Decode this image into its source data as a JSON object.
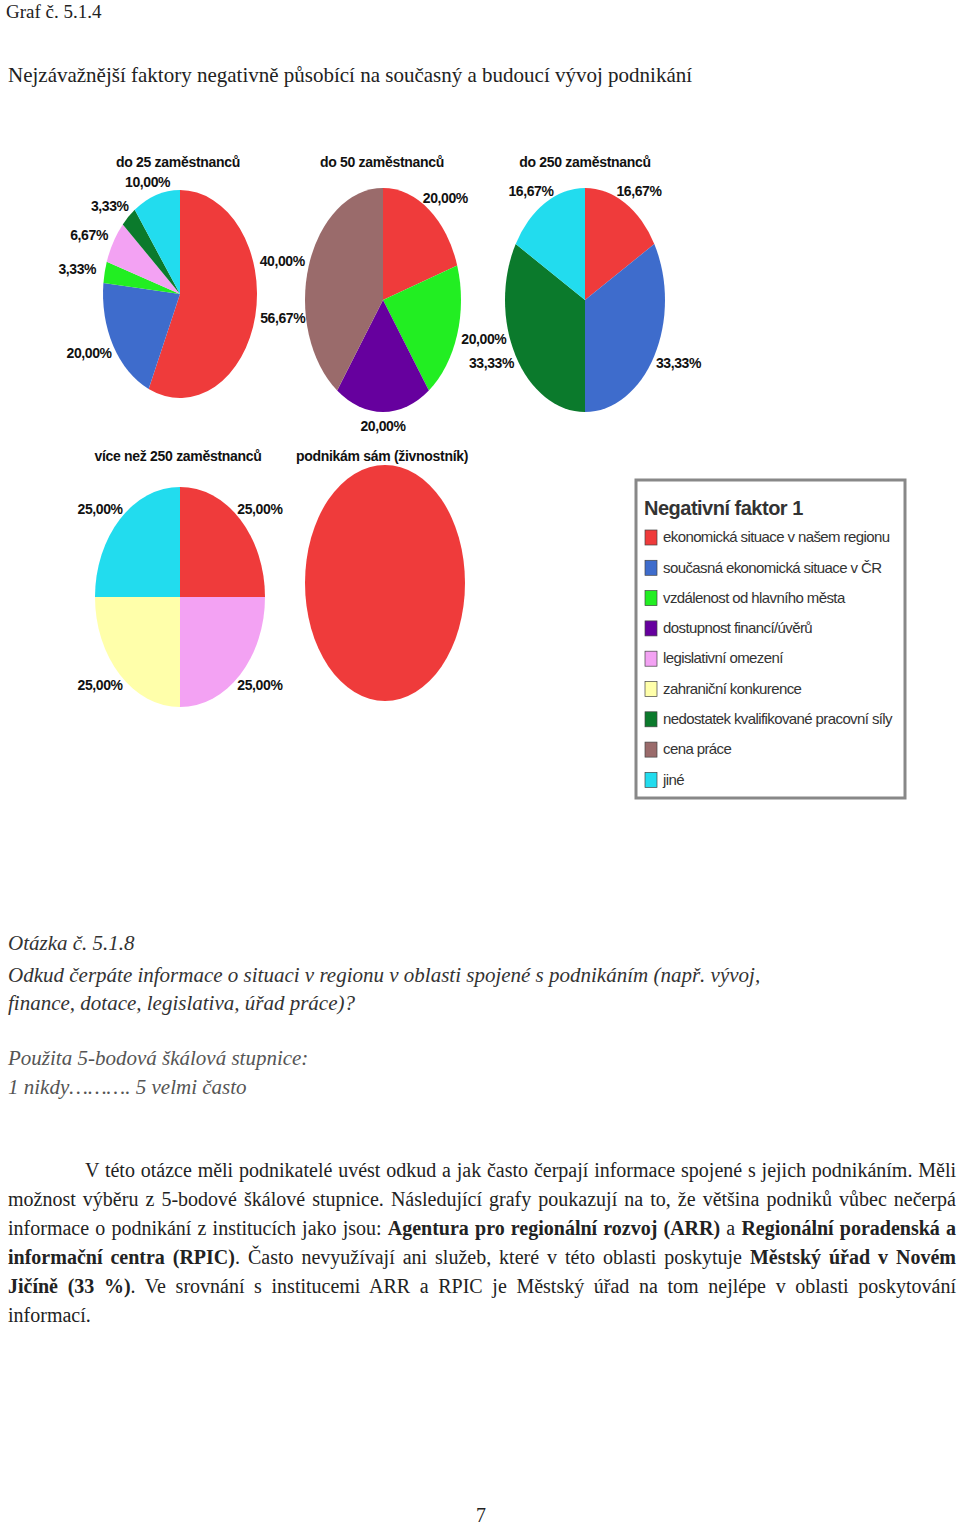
{
  "chart_data": [
    {
      "type": "pie",
      "title": "do 25 zaměstnanců",
      "categories": [
        "ekonomická situace v našem regionu",
        "současná ekonomická situace v ČR",
        "vzdálenost od hlavního města",
        "legislativní omezení",
        "nedostatek kvalifikované pracovní síly",
        "jiné"
      ],
      "values": [
        56.67,
        20.0,
        3.33,
        6.67,
        3.33,
        10.0
      ],
      "value_labels": [
        "56,67%",
        "20,00%",
        "3,33%",
        "6,67%",
        "3,33%",
        "10,00%"
      ],
      "data_labels": true
    },
    {
      "type": "pie",
      "title": "do 50 zaměstnanců",
      "categories": [
        "ekonomická situace v našem regionu",
        "vzdálenost od hlavního města",
        "dostupnost financí/úvěrů",
        "cena práce"
      ],
      "values": [
        20.0,
        20.0,
        20.0,
        40.0
      ],
      "value_labels": [
        "20,00%",
        "20,00%",
        "20,00%",
        "40,00%"
      ],
      "data_labels": true
    },
    {
      "type": "pie",
      "title": "do 250 zaměstnanců",
      "categories": [
        "ekonomická situace v našem regionu",
        "současná ekonomická situace v ČR",
        "nedostatek kvalifikované pracovní síly",
        "jiné"
      ],
      "values": [
        16.67,
        33.33,
        33.33,
        16.67
      ],
      "value_labels": [
        "16,67%",
        "33,33%",
        "33,33%",
        "16,67%"
      ],
      "data_labels": true
    },
    {
      "type": "pie",
      "title": "více než 250 zaměstnanců",
      "categories": [
        "ekonomická situace v našem regionu",
        "legislativní omezení",
        "zahraniční konkurence",
        "jiné"
      ],
      "values": [
        25.0,
        25.0,
        25.0,
        25.0
      ],
      "value_labels": [
        "25,00%",
        "25,00%",
        "25,00%",
        "25,00%"
      ],
      "data_labels": true
    },
    {
      "type": "pie",
      "title": "podnikám sám (živnostník)",
      "categories": [
        "ekonomická situace v našem regionu"
      ],
      "values": [
        100
      ],
      "data_labels": false
    }
  ],
  "document": {
    "header": "Graf č. 5.1.4",
    "title": "Nejzávažnější faktory negativně působící na současný a budoucí vývoj podnikání",
    "legend": {
      "title": "Negativní faktor 1",
      "items": [
        {
          "name": "ekonomická situace v našem regionu",
          "color": "#ef3b3b"
        },
        {
          "name": "současná ekonomická situace v ČR",
          "color": "#3e6ccc"
        },
        {
          "name": "vzdálenost od hlavního města",
          "color": "#22ee22"
        },
        {
          "name": "dostupnost financí/úvěrů",
          "color": "#66009e"
        },
        {
          "name": "legislativní omezení",
          "color": "#f3a2f3"
        },
        {
          "name": "zahraniční konkurence",
          "color": "#ffffaa"
        },
        {
          "name": "nedostatek kvalifikované pracovní síly",
          "color": "#0b7a2c"
        },
        {
          "name": "cena práce",
          "color": "#9a6b6b"
        },
        {
          "name": "jiné",
          "color": "#22dcee"
        }
      ]
    },
    "question": {
      "number": "Otázka č. 5.1.8",
      "text_lines": [
        "Odkud čerpáte informace o situaci v regionu v oblasti spojené s podnikáním (např. vývoj,",
        "finance, dotace, legislativa, úřad práce)?"
      ],
      "scale_lines": [
        "Použita 5-bodová škálová stupnice:",
        "1 nikdy………. 5 velmi často"
      ]
    },
    "paragraph": {
      "runs": [
        {
          "text": "V této otázce měli podnikatelé uvést odkud a jak často čerpají informace spojené s jejich podnikáním. Měli možnost výběru z 5-bodové škálové stupnice. Následující grafy poukazují na to, že většina podniků vůbec nečerpá informace o podnikání z institucích jako jsou: ",
          "strong": false
        },
        {
          "text": "Agentura pro regionální rozvoj (ARR)",
          "strong": true
        },
        {
          "text": " a ",
          "strong": false
        },
        {
          "text": "Regionální poradenská a informační centra (RPIC)",
          "strong": true
        },
        {
          "text": ". Často nevyužívají ani služeb, které v této oblasti poskytuje ",
          "strong": false
        },
        {
          "text": "Městský úřad v Novém Jičíně (33 %)",
          "strong": true
        },
        {
          "text": ". Ve srovnání s institucemi ARR a RPIC je Městský úřad na tom nejlépe v oblasti poskytování informací.",
          "strong": false
        }
      ]
    },
    "page_number": "7"
  }
}
